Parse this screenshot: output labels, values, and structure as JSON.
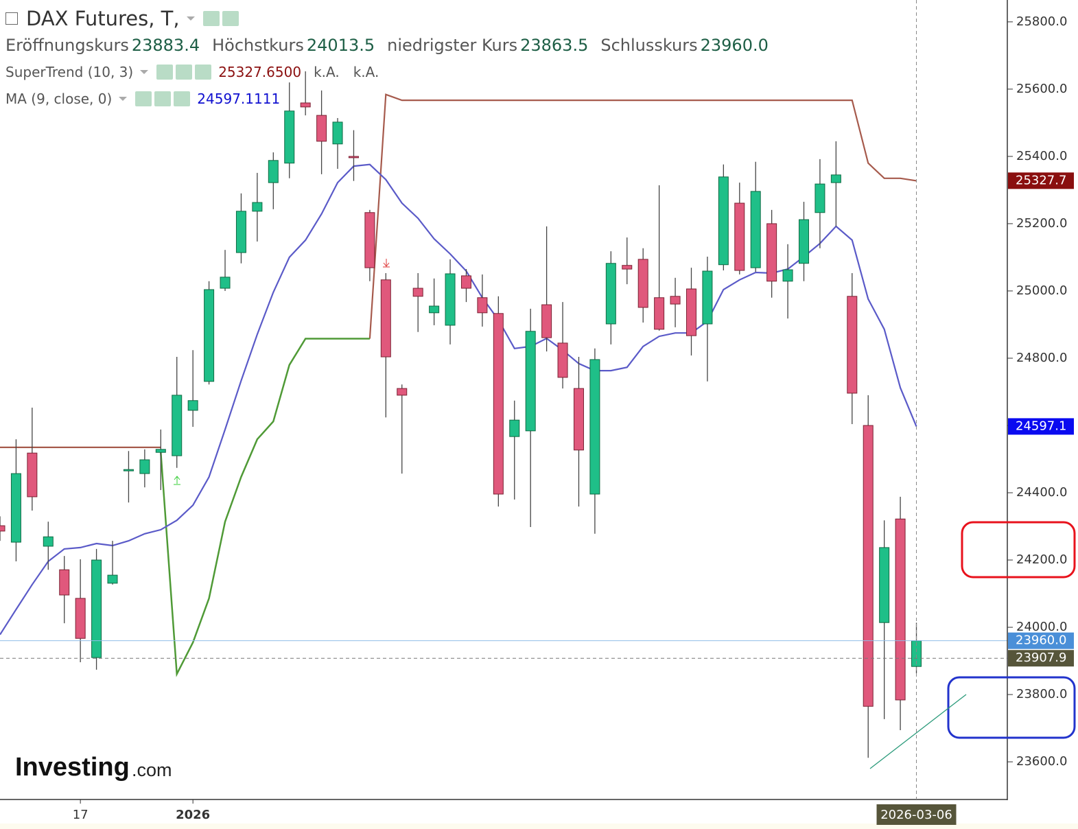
{
  "header": {
    "title": "DAX Futures, T,",
    "ohlc": [
      {
        "label": "Eröffnungskurs",
        "value": "23883.4"
      },
      {
        "label": "Höchstkurs",
        "value": "24013.5"
      },
      {
        "label": "niedrigster Kurs",
        "value": "23863.5"
      },
      {
        "label": "Schlusskurs",
        "value": "23960.0"
      }
    ]
  },
  "logo": {
    "name": "Investing",
    "suffix": ".com"
  },
  "chart_data": {
    "type": "candlestick",
    "categories": [
      null,
      null,
      null,
      null,
      null,
      "17",
      null,
      null,
      null,
      null,
      null,
      null,
      "2026",
      null,
      null,
      null,
      null,
      null,
      null,
      null,
      null,
      null,
      null,
      null,
      null,
      null,
      null,
      null,
      null,
      null,
      null,
      null,
      null,
      null,
      null,
      null,
      null,
      null,
      null,
      null,
      null,
      null,
      null,
      null,
      null,
      null,
      null,
      null,
      null,
      null,
      null,
      null,
      null,
      null,
      null,
      null,
      null,
      "2026-03-06"
    ],
    "open": [
      24302,
      24253,
      24518,
      24241,
      24171,
      24086,
      23910,
      24131,
      24465,
      24457,
      24520,
      24510,
      24645,
      24731,
      25008,
      25114,
      25237,
      25322,
      25380,
      25559,
      25522,
      25437,
      25400,
      25233,
      25033,
      24710,
      25008,
      24935,
      24898,
      25045,
      24980,
      24933,
      24567,
      24584,
      24959,
      24845,
      24710,
      24396,
      24902,
      25076,
      25094,
      24980,
      24984,
      25006,
      24902,
      25078,
      25261,
      25069,
      25200,
      25029,
      25082,
      25233,
      25322,
      24984,
      24600,
      24014,
      24322,
      23883.4
    ],
    "high": [
      24330,
      24559,
      24653,
      24314,
      24212,
      24202,
      24233,
      24257,
      24524,
      24529,
      24588,
      24804,
      24824,
      25029,
      25122,
      25290,
      25351,
      25412,
      25620,
      25653,
      25596,
      25514,
      25478,
      25241,
      25053,
      24722,
      25053,
      25037,
      25094,
      25065,
      25049,
      24984,
      24674,
      24947,
      25192,
      24967,
      24804,
      24829,
      25118,
      25159,
      25127,
      25314,
      25039,
      25069,
      25102,
      25376,
      25322,
      25384,
      25241,
      25139,
      25265,
      25392,
      25445,
      25053,
      24690,
      24318,
      24388,
      24013.5
    ],
    "low": [
      24257,
      24196,
      24347,
      24171,
      24012,
      23896,
      23874,
      24127,
      24371,
      24416,
      24408,
      24474,
      24596,
      24722,
      25000,
      25082,
      25147,
      25243,
      25335,
      25522,
      25347,
      25363,
      25327,
      25029,
      24624,
      24457,
      24878,
      24898,
      24841,
      24967,
      24894,
      24359,
      24380,
      24298,
      24820,
      24710,
      24359,
      24278,
      24841,
      25020,
      24906,
      24882,
      24892,
      24808,
      24731,
      25061,
      25049,
      25057,
      24980,
      24918,
      25029,
      25127,
      25192,
      24604,
      23612,
      23727,
      23694,
      23863.5
    ],
    "close": [
      24286,
      24457,
      24388,
      24269,
      24096,
      23967,
      24200,
      24155,
      24469,
      24498,
      24529,
      24690,
      24674,
      25004,
      25041,
      25237,
      25263,
      25388,
      25535,
      25547,
      25445,
      25502,
      25396,
      25069,
      24804,
      24690,
      24984,
      24955,
      25051,
      25008,
      24935,
      24396,
      24616,
      24880,
      24861,
      24743,
      24527,
      24796,
      25082,
      25065,
      24951,
      24886,
      24961,
      24867,
      25059,
      25339,
      25061,
      25296,
      25029,
      25063,
      25212,
      25318,
      25345,
      24696,
      23765,
      24237,
      23784,
      23960.0
    ],
    "up_color": "#1fbf88",
    "down_color": "#e0587c",
    "series": [
      {
        "name": "SuperTrend (10, 3)",
        "value_label": "25327.6500",
        "extra": [
          "k.A.",
          "k.A."
        ],
        "upper_color": "#a65a4c",
        "lower_color": "#4f9a36",
        "upper": [
          24535,
          24535,
          24535,
          24535,
          24535,
          24535,
          24535,
          24535,
          24535,
          24535,
          24535,
          null,
          null,
          null,
          null,
          null,
          null,
          null,
          null,
          null,
          null,
          null,
          null,
          24858,
          25584,
          25567,
          25567,
          25567,
          25567,
          25567,
          25567,
          25567,
          25567,
          25567,
          25567,
          25567,
          25567,
          25567,
          25567,
          25567,
          25567,
          25567,
          25567,
          25567,
          25567,
          25567,
          25567,
          25567,
          25567,
          25567,
          25567,
          25567,
          25567,
          25567,
          25380,
          25335,
          25335,
          25327.65
        ],
        "lower": [
          null,
          null,
          null,
          null,
          null,
          null,
          null,
          null,
          null,
          null,
          24520,
          23861,
          23955,
          24086,
          24314,
          24447,
          24559,
          24612,
          24780,
          24858,
          24858,
          24858,
          24858,
          24858,
          null,
          null,
          null,
          null,
          null,
          null,
          null,
          null,
          null,
          null,
          null,
          null,
          null,
          null,
          null,
          null,
          null,
          null,
          null,
          null,
          null,
          null,
          null,
          null,
          null,
          null,
          null,
          null,
          null,
          null,
          null,
          null,
          null,
          null
        ]
      },
      {
        "name": "MA (9, close, 0)",
        "value_label": "24597.1111",
        "color": "#5a5ac8",
        "values": [
          23978,
          24053,
          24127,
          24196,
          24233,
          24237,
          24249,
          24243,
          24257,
          24278,
          24290,
          24318,
          24363,
          24447,
          24588,
          24733,
          24871,
          24996,
          25100,
          25151,
          25229,
          25322,
          25371,
          25376,
          25331,
          25261,
          25216,
          25155,
          25110,
          25059,
          24980,
          24914,
          24829,
          24835,
          24859,
          24824,
          24784,
          24763,
          24763,
          24773,
          24835,
          24865,
          24875,
          24875,
          24910,
          25004,
          25033,
          25055,
          25053,
          25065,
          25102,
          25141,
          25192,
          25151,
          24976,
          24886,
          24712,
          24597.11
        ]
      }
    ],
    "ylim": [
      23488,
      25865
    ],
    "yticks": [
      {
        "value": 23600,
        "label": "23600.0"
      },
      {
        "value": 23800,
        "label": "23800.0"
      },
      {
        "value": 24000,
        "label": "24000.0"
      },
      {
        "value": 24200,
        "label": "24200.0"
      },
      {
        "value": 24400,
        "label": "24400.0"
      },
      {
        "value": 24600,
        "label": "24600.0"
      },
      {
        "value": 24800,
        "label": "24800.0"
      },
      {
        "value": 25000,
        "label": "25000.0"
      },
      {
        "value": 25200,
        "label": "25200.0"
      },
      {
        "value": 25400,
        "label": "25400.0"
      },
      {
        "value": 25600,
        "label": "25600.0"
      },
      {
        "value": 25800,
        "label": "25800.0"
      }
    ],
    "grid": false,
    "price_labels": [
      {
        "value": 25327.7,
        "color": "#8a0f0f"
      },
      {
        "value": 24597.1,
        "color": "#0a0af0"
      },
      {
        "value": 23960,
        "label": "23960.0",
        "color": "#4a8fd8",
        "line": "solid"
      },
      {
        "value": 23907.9,
        "color": "#56553a",
        "line": "dashed"
      }
    ]
  }
}
